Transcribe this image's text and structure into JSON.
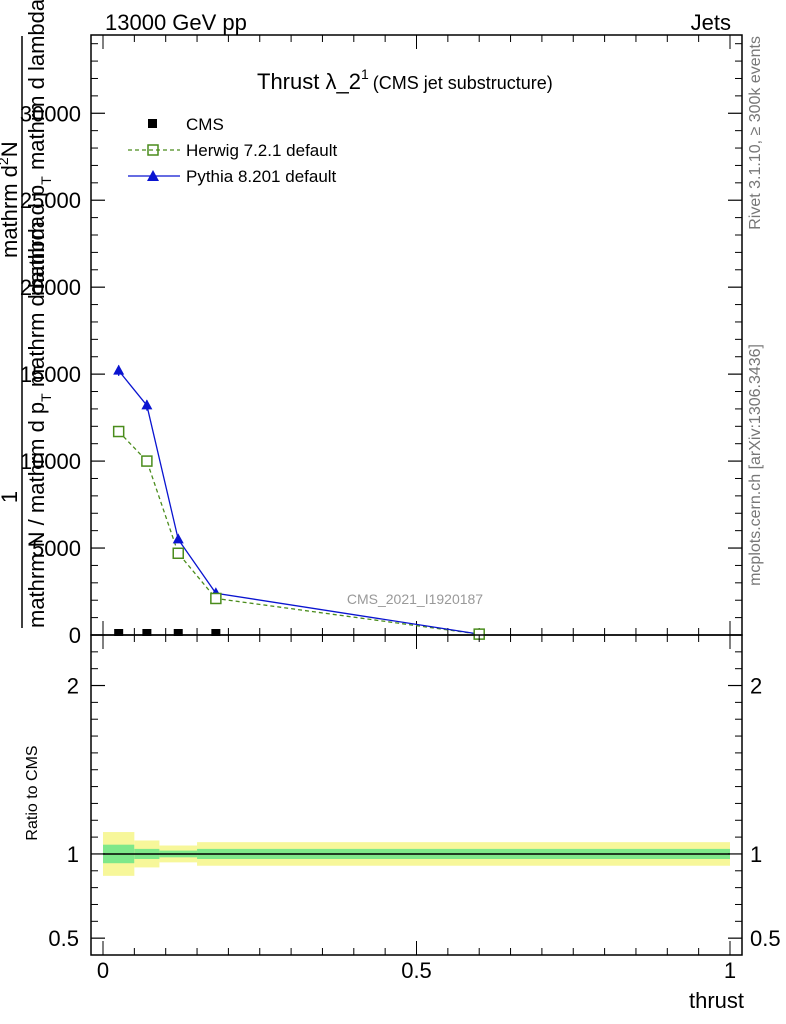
{
  "header": {
    "left": "13000 GeV pp",
    "right": "Jets"
  },
  "side": {
    "rivet": "Rivet 3.1.10, ≥ 300k events",
    "mcplots": "mcplots.cern.ch [arXiv:1306.3436]"
  },
  "watermark": "CMS_2021_I1920187",
  "colors": {
    "herwig": "#4a8c1c",
    "pythia": "#0a14d0",
    "data": "#000000",
    "band_inner": "#7ee88a",
    "band_outer": "#f7f79a"
  },
  "chart_data": [
    {
      "type": "line",
      "title": "Thrust λ_2",
      "title_sup": "1",
      "title_note": "(CMS jet substructure)",
      "ylabel": {
        "numerator": "1",
        "line1": "mathrm d",
        "line1_sup": "2",
        "line1_end": "N",
        "line2": "mathrm N / mathrm d p",
        "line2_sub": "T",
        "line2_end": " mathrm d lambda",
        "line3": "mathrm d p",
        "line3_sub": "T",
        "line3_end": " mathrm d lambda"
      },
      "xlim": [
        0,
        1
      ],
      "ylim": [
        0,
        34500
      ],
      "yticks": [
        "0",
        "5000",
        "10000",
        "15000",
        "20000",
        "25000",
        "30000"
      ],
      "ytick_values": [
        0,
        5000,
        10000,
        15000,
        20000,
        25000,
        30000
      ],
      "legend_position": "top-left",
      "series": [
        {
          "name": "CMS",
          "style": "markers",
          "x": [
            0.025,
            0.07,
            0.12,
            0.18
          ],
          "y": [
            0,
            0,
            0,
            0
          ]
        },
        {
          "name": "Herwig 7.2.1 default",
          "style": "dashed-open-square",
          "x": [
            0.025,
            0.07,
            0.12,
            0.18,
            0.6
          ],
          "y": [
            11700,
            10000,
            4700,
            2100,
            50
          ]
        },
        {
          "name": "Pythia 8.201 default",
          "style": "solid-triangle",
          "x": [
            0.025,
            0.07,
            0.12,
            0.18,
            0.6
          ],
          "y": [
            15200,
            13200,
            5500,
            2400,
            50
          ],
          "yerr": [
            300,
            300,
            150,
            80,
            5
          ]
        }
      ]
    },
    {
      "type": "line",
      "ylabel": "Ratio to CMS",
      "xlabel": "thrust",
      "xlim": [
        0,
        1
      ],
      "xticks": [
        "0",
        "0.5",
        "1"
      ],
      "xtick_values": [
        0,
        0.5,
        1
      ],
      "ylim": [
        0.4,
        2.3
      ],
      "yticks": [
        "0.5",
        "1",
        "2"
      ],
      "ytick_values": [
        0.5,
        1,
        2
      ],
      "bands": {
        "edges": [
          0,
          0.05,
          0.09,
          0.15,
          1
        ],
        "inner": [
          0.055,
          0.03,
          0.02,
          0.03
        ],
        "outer": [
          0.13,
          0.08,
          0.05,
          0.07
        ]
      },
      "reference": 1
    }
  ]
}
